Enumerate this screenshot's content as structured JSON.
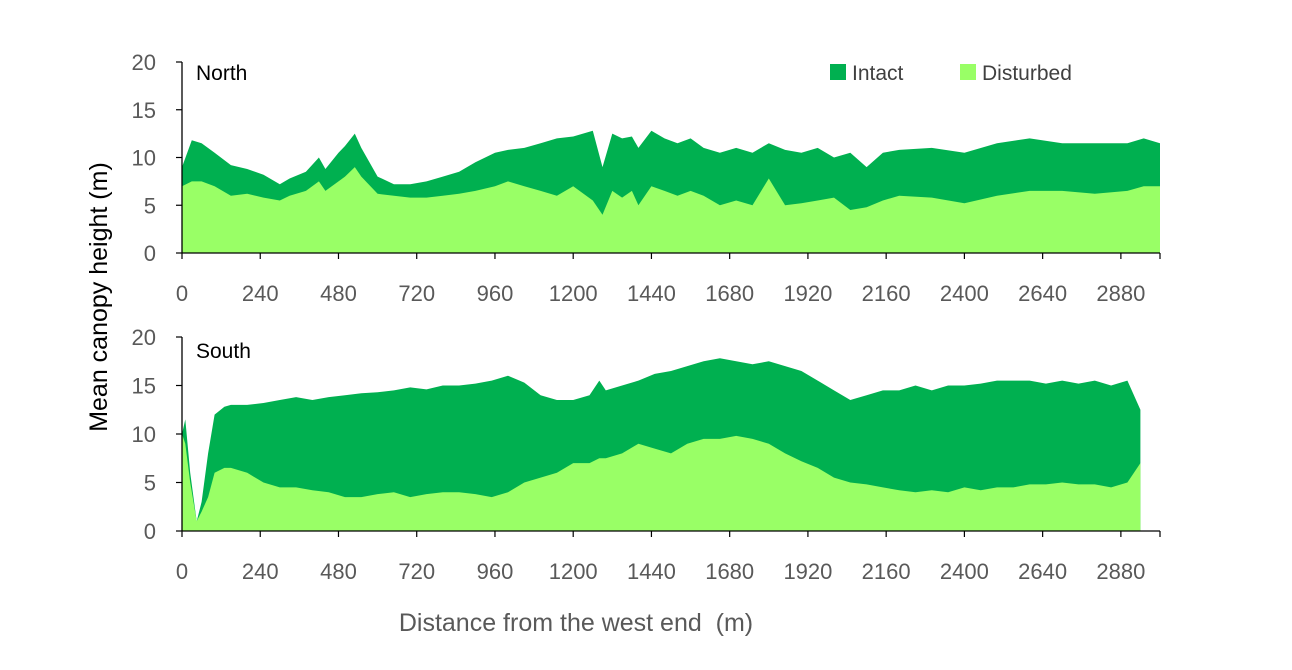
{
  "chart_data": {
    "type": "area",
    "ylabel": "Mean canopy height (m)",
    "xlabel": "Distance from the west end  (m)",
    "xlim": [
      0,
      3000
    ],
    "ylim": [
      0,
      20
    ],
    "x_ticks": [
      0,
      240,
      480,
      720,
      960,
      1200,
      1440,
      1680,
      1920,
      2160,
      2400,
      2640,
      2880
    ],
    "y_ticks": [
      0,
      5,
      10,
      15,
      20
    ],
    "legend": {
      "position": "top-right",
      "entries": [
        {
          "label": "Intact",
          "color": "#00b050"
        },
        {
          "label": "Disturbed",
          "color": "#99ff66"
        }
      ]
    },
    "panels": [
      {
        "title": "North",
        "x": [
          0,
          30,
          60,
          100,
          150,
          200,
          250,
          300,
          330,
          380,
          420,
          440,
          480,
          500,
          530,
          550,
          600,
          650,
          700,
          750,
          800,
          850,
          900,
          960,
          1000,
          1050,
          1100,
          1150,
          1200,
          1260,
          1290,
          1320,
          1350,
          1380,
          1400,
          1440,
          1480,
          1520,
          1560,
          1600,
          1650,
          1700,
          1750,
          1800,
          1850,
          1900,
          1950,
          2000,
          2050,
          2100,
          2150,
          2200,
          2300,
          2400,
          2500,
          2600,
          2700,
          2800,
          2900,
          2950,
          3000
        ],
        "series": [
          {
            "name": "Intact",
            "values": [
              9,
              11.8,
              11.5,
              10.5,
              9.2,
              8.8,
              8.2,
              7.2,
              7.8,
              8.5,
              10,
              8.8,
              10.5,
              11.2,
              12.5,
              11,
              8,
              7.2,
              7.2,
              7.5,
              8,
              8.5,
              9.5,
              10.5,
              10.8,
              11,
              11.5,
              12,
              12.2,
              12.8,
              9,
              12.5,
              12,
              12.2,
              11,
              12.8,
              12,
              11.5,
              12,
              11,
              10.5,
              11,
              10.5,
              11.5,
              10.8,
              10.5,
              11,
              10,
              10.5,
              9,
              10.5,
              10.8,
              11,
              10.5,
              11.5,
              12,
              11.5,
              11.5,
              11.5,
              12,
              11.5
            ]
          },
          {
            "name": "Disturbed",
            "values": [
              7,
              7.5,
              7.5,
              7,
              6,
              6.2,
              5.8,
              5.5,
              6,
              6.5,
              7.5,
              6.5,
              7.5,
              8,
              9,
              8,
              6.2,
              6,
              5.8,
              5.8,
              6,
              6.2,
              6.5,
              7,
              7.5,
              7,
              6.5,
              6,
              7,
              5.5,
              4,
              6.5,
              5.8,
              6.5,
              5,
              7,
              6.5,
              6,
              6.5,
              6,
              5,
              5.5,
              5,
              7.8,
              5,
              5.2,
              5.5,
              5.8,
              4.5,
              4.8,
              5.5,
              6,
              5.8,
              5.2,
              6,
              6.5,
              6.5,
              6.2,
              6.5,
              7,
              7
            ]
          }
        ]
      },
      {
        "title": "South",
        "x": [
          0,
          10,
          25,
          45,
          60,
          80,
          100,
          130,
          150,
          200,
          250,
          300,
          350,
          400,
          450,
          500,
          550,
          600,
          650,
          700,
          750,
          800,
          850,
          900,
          950,
          1000,
          1050,
          1100,
          1150,
          1200,
          1250,
          1280,
          1300,
          1350,
          1400,
          1450,
          1500,
          1550,
          1600,
          1650,
          1700,
          1750,
          1800,
          1850,
          1900,
          1950,
          2000,
          2050,
          2100,
          2150,
          2200,
          2250,
          2300,
          2350,
          2400,
          2450,
          2500,
          2550,
          2600,
          2650,
          2700,
          2750,
          2800,
          2850,
          2900,
          2940
        ],
        "series": [
          {
            "name": "Intact",
            "values": [
              10,
              11.5,
              6,
              1,
              3,
              8,
              12,
              12.8,
              13,
              13,
              13.2,
              13.5,
              13.8,
              13.5,
              13.8,
              14,
              14.2,
              14.3,
              14.5,
              14.8,
              14.6,
              15,
              15,
              15.2,
              15.5,
              16,
              15.3,
              14,
              13.5,
              13.5,
              14,
              15.5,
              14.5,
              15,
              15.5,
              16.2,
              16.5,
              17,
              17.5,
              17.8,
              17.5,
              17.2,
              17.5,
              17,
              16.5,
              15.5,
              14.5,
              13.5,
              14,
              14.5,
              14.5,
              15,
              14.5,
              15,
              15,
              15.2,
              15.5,
              15.5,
              15.5,
              15.2,
              15.5,
              15.2,
              15.5,
              15,
              15.5,
              12.5
            ]
          },
          {
            "name": "Disturbed",
            "values": [
              10,
              9,
              5,
              1,
              2,
              3.5,
              6,
              6.5,
              6.5,
              6,
              5,
              4.5,
              4.5,
              4.2,
              4,
              3.5,
              3.5,
              3.8,
              4,
              3.5,
              3.8,
              4,
              4,
              3.8,
              3.5,
              4,
              5,
              5.5,
              6,
              7,
              7,
              7.5,
              7.5,
              8,
              9,
              8.5,
              8,
              9,
              9.5,
              9.5,
              9.8,
              9.5,
              9,
              8,
              7.2,
              6.5,
              5.5,
              5,
              4.8,
              4.5,
              4.2,
              4,
              4.2,
              4,
              4.5,
              4.2,
              4.5,
              4.5,
              4.8,
              4.8,
              5,
              4.8,
              4.8,
              4.5,
              5,
              7
            ]
          }
        ]
      }
    ]
  }
}
